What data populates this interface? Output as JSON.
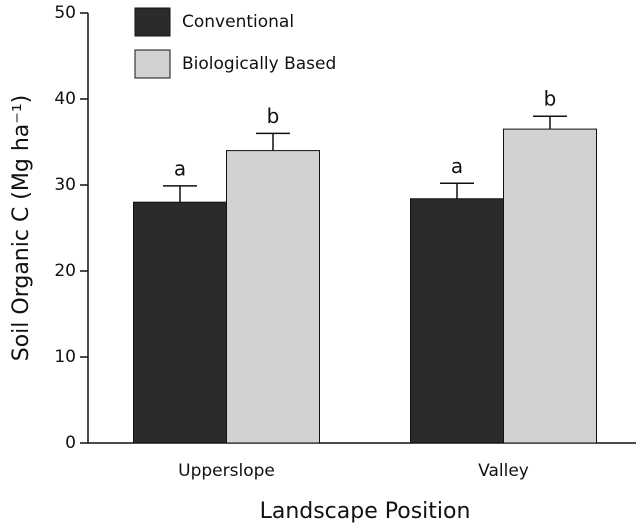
{
  "chart_data": {
    "type": "bar",
    "x_label": "Landscape Position",
    "y_label": "Soil Organic C (Mg ha⁻¹)",
    "categories": [
      "Upperslope",
      "Valley"
    ],
    "series": [
      {
        "name": "Conventional",
        "color": "#2b2b2b",
        "values": [
          28.0,
          28.4
        ],
        "errors": [
          1.9,
          1.8
        ],
        "letters": [
          "a",
          "a"
        ]
      },
      {
        "name": "Biologically Based",
        "color": "#d2d2d2",
        "values": [
          34.0,
          36.5
        ],
        "errors": [
          2.0,
          1.5
        ],
        "letters": [
          "b",
          "b"
        ]
      }
    ],
    "ylim": [
      0,
      50
    ],
    "yticks": [
      0,
      10,
      20,
      30,
      40,
      50
    ],
    "grid": false,
    "legend": "top-left"
  }
}
